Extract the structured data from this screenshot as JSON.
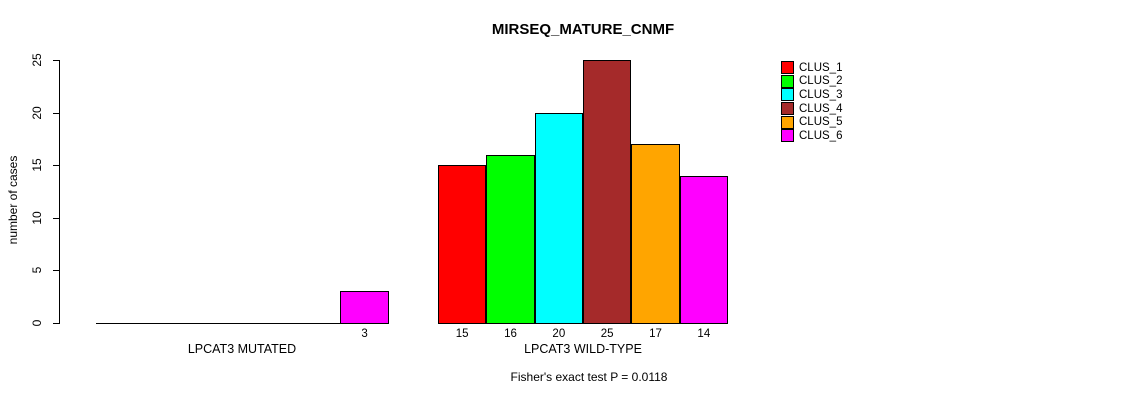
{
  "title": "MIRSEQ_MATURE_CNMF",
  "chart_data": {
    "type": "bar",
    "title": "MIRSEQ_MATURE_CNMF",
    "xlabel": "",
    "ylabel": "number of cases",
    "ylim": [
      0,
      25
    ],
    "yticks": [
      0,
      5,
      10,
      15,
      20,
      25
    ],
    "grid": false,
    "legend_position": "right",
    "groups": [
      "LPCAT3 MUTATED",
      "LPCAT3 WILD-TYPE"
    ],
    "series": [
      {
        "name": "CLUS_1",
        "color": "#FF0000",
        "values": [
          0,
          15
        ]
      },
      {
        "name": "CLUS_2",
        "color": "#00FF00",
        "values": [
          0,
          16
        ]
      },
      {
        "name": "CLUS_3",
        "color": "#00FFFF",
        "values": [
          0,
          20
        ]
      },
      {
        "name": "CLUS_4",
        "color": "#A52A2A",
        "values": [
          0,
          25
        ]
      },
      {
        "name": "CLUS_5",
        "color": "#FFA500",
        "values": [
          0,
          17
        ]
      },
      {
        "name": "CLUS_6",
        "color": "#FF00FF",
        "values": [
          3,
          14
        ]
      }
    ],
    "bar_value_labels_shown": [
      3,
      15,
      16,
      20,
      25,
      17,
      14
    ],
    "annotation": "Fisher's exact test P = 0.0118"
  },
  "colors": {
    "bar_outline": "#000000",
    "axis": "#000000",
    "text": "#000000",
    "background": "#FFFFFF"
  }
}
